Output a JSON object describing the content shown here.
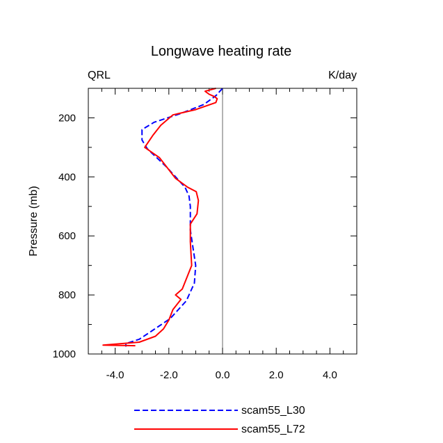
{
  "chart_data": {
    "type": "line",
    "title": "Longwave heating rate",
    "left_label": "QRL",
    "right_label": "K/day",
    "ylabel": "Pressure (mb)",
    "xlabel": "",
    "xlim": [
      -5.0,
      5.0
    ],
    "ylim": [
      1000,
      100
    ],
    "y_inverted": true,
    "xticks": [
      -4.0,
      -2.0,
      0.0,
      2.0,
      4.0
    ],
    "xtick_labels": [
      "-4.0",
      "-2.0",
      "0.0",
      "2.0",
      "4.0"
    ],
    "yticks": [
      200,
      400,
      600,
      800,
      1000
    ],
    "ytick_labels": [
      "200",
      "400",
      "600",
      "800",
      "1000"
    ],
    "zero_line_x": 0.0,
    "legend_position": "bottom-center",
    "series": [
      {
        "name": "scam55_L30",
        "color": "#0000ff",
        "style": "dashed",
        "points": [
          [
            0.0,
            100
          ],
          [
            -0.25,
            125
          ],
          [
            -0.7,
            155
          ],
          [
            -1.55,
            185
          ],
          [
            -2.55,
            215
          ],
          [
            -3.0,
            240
          ],
          [
            -3.0,
            275
          ],
          [
            -2.8,
            305
          ],
          [
            -2.45,
            335
          ],
          [
            -2.1,
            365
          ],
          [
            -1.8,
            395
          ],
          [
            -1.4,
            435
          ],
          [
            -1.25,
            465
          ],
          [
            -1.2,
            500
          ],
          [
            -1.2,
            540
          ],
          [
            -1.2,
            580
          ],
          [
            -1.1,
            640
          ],
          [
            -1.0,
            700
          ],
          [
            -1.05,
            760
          ],
          [
            -1.35,
            820
          ],
          [
            -1.95,
            880
          ],
          [
            -2.6,
            920
          ],
          [
            -3.1,
            950
          ],
          [
            -3.6,
            965
          ],
          [
            -3.6,
            975
          ]
        ]
      },
      {
        "name": "scam55_L72",
        "color": "#ff0000",
        "style": "solid",
        "points": [
          [
            -0.25,
            100
          ],
          [
            -0.65,
            110
          ],
          [
            -0.5,
            120
          ],
          [
            -0.3,
            128
          ],
          [
            -0.2,
            135
          ],
          [
            -0.25,
            148
          ],
          [
            -1.0,
            172
          ],
          [
            -1.85,
            190
          ],
          [
            -2.3,
            225
          ],
          [
            -2.6,
            260
          ],
          [
            -2.9,
            300
          ],
          [
            -2.35,
            335
          ],
          [
            -2.05,
            370
          ],
          [
            -1.75,
            405
          ],
          [
            -1.3,
            435
          ],
          [
            -0.98,
            450
          ],
          [
            -0.9,
            480
          ],
          [
            -0.95,
            525
          ],
          [
            -1.2,
            560
          ],
          [
            -1.2,
            620
          ],
          [
            -1.15,
            700
          ],
          [
            -1.5,
            780
          ],
          [
            -1.75,
            800
          ],
          [
            -1.55,
            815
          ],
          [
            -1.85,
            850
          ],
          [
            -2.0,
            885
          ],
          [
            -2.2,
            915
          ],
          [
            -2.5,
            940
          ],
          [
            -3.1,
            960
          ],
          [
            -4.45,
            970
          ],
          [
            -3.25,
            972
          ]
        ]
      }
    ]
  }
}
